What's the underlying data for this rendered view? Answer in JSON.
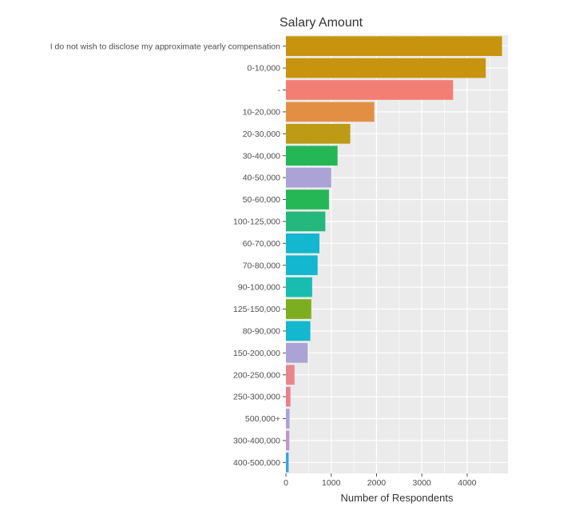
{
  "chart_data": {
    "type": "bar",
    "orientation": "horizontal",
    "title": "Salary Amount",
    "xlabel": "Number of Respondents",
    "ylabel": "",
    "xlim": [
      0,
      4900
    ],
    "x_ticks": [
      0,
      1000,
      2000,
      3000,
      4000
    ],
    "x_tick_labels": [
      "0",
      "1000",
      "2000",
      "3000",
      "4000"
    ],
    "grid": true,
    "legend": "none",
    "categories": [
      "I do not wish to disclose my approximate yearly compensation",
      "0-10,000",
      "-",
      "10-20,000",
      "20-30,000",
      "30-40,000",
      "40-50,000",
      "50-60,000",
      "100-125,000",
      "60-70,000",
      "70-80,000",
      "90-100,000",
      "125-150,000",
      "80-90,000",
      "150-200,000",
      "200-250,000",
      "250-300,000",
      "500,000+",
      "300-400,000",
      "400-500,000"
    ],
    "values": [
      4770,
      4410,
      3690,
      1950,
      1420,
      1140,
      1000,
      950,
      870,
      740,
      700,
      580,
      560,
      540,
      480,
      190,
      100,
      80,
      75,
      60
    ],
    "colors": [
      "#C8930D",
      "#C8930D",
      "#F37E73",
      "#E38F43",
      "#BE9B14",
      "#25B655",
      "#ABA2D5",
      "#25B655",
      "#25B87D",
      "#13B7CF",
      "#13B7CF",
      "#19BDAF",
      "#7CAE1F",
      "#13B7CF",
      "#ABA2D5",
      "#E9868D",
      "#EA7F8D",
      "#ABA2D5",
      "#BE98CC",
      "#3CA1DE"
    ]
  },
  "style": {
    "panel_background": "#EBEBEB",
    "grid_color": "#FFFFFF",
    "tick_color": "#4d4d4d"
  }
}
